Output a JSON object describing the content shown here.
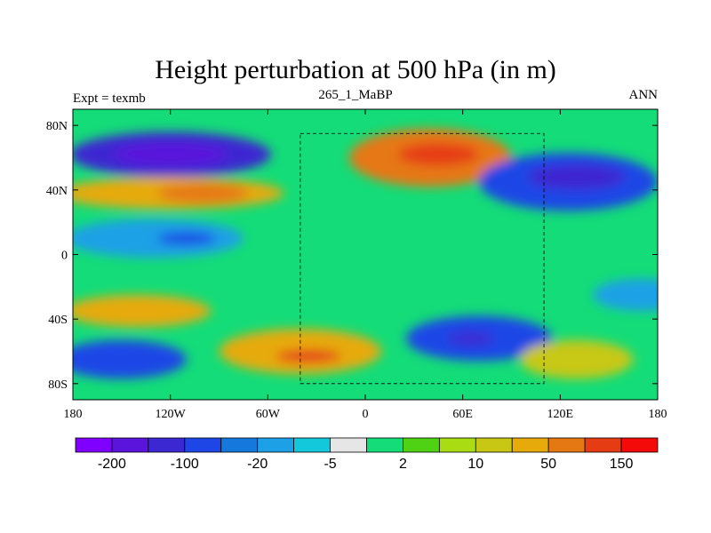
{
  "chart_data": {
    "type": "heatmap",
    "title": "Height perturbation at 500 hPa (in m)",
    "left_label": "Expt = texmb",
    "center_label": "265_1_MaBP",
    "right_label": "ANN",
    "x_ticks": [
      {
        "lon": -180,
        "label": "180"
      },
      {
        "lon": -120,
        "label": "120W"
      },
      {
        "lon": -60,
        "label": "60W"
      },
      {
        "lon": 0,
        "label": "0"
      },
      {
        "lon": 60,
        "label": "60E"
      },
      {
        "lon": 120,
        "label": "120E"
      },
      {
        "lon": 180,
        "label": "180"
      }
    ],
    "y_ticks": [
      {
        "lat": 80,
        "label": "80N"
      },
      {
        "lat": 40,
        "label": "40N"
      },
      {
        "lat": 0,
        "label": "0"
      },
      {
        "lat": -40,
        "label": "40S"
      },
      {
        "lat": -80,
        "label": "80S"
      }
    ],
    "xlim": [
      -180,
      180
    ],
    "ylim": [
      -90,
      90
    ],
    "colorbar": {
      "colors": [
        "#7f00ff",
        "#5a14dc",
        "#3c28d2",
        "#1e46e6",
        "#1478dc",
        "#1ea0e6",
        "#14c8dc",
        "#e6e6e6",
        "#14dc78",
        "#50d214",
        "#aadc14",
        "#c8c814",
        "#e6aa0a",
        "#e67814",
        "#e63c14",
        "#f50a0a"
      ],
      "labels": [
        {
          "after_index": 0,
          "label": "-200"
        },
        {
          "after_index": 2,
          "label": "-100"
        },
        {
          "after_index": 4,
          "label": "-20"
        },
        {
          "after_index": 6,
          "label": "-5"
        },
        {
          "after_index": 8,
          "label": "2"
        },
        {
          "after_index": 10,
          "label": "10"
        },
        {
          "after_index": 12,
          "label": "50"
        },
        {
          "after_index": 14,
          "label": "150"
        }
      ]
    },
    "regions": [
      {
        "name": "n-pacific-low",
        "lon": -120,
        "lat": 62,
        "rlon": 62,
        "rlat": 14,
        "level": 2
      },
      {
        "name": "n-pacific-core",
        "lon": -120,
        "lat": 62,
        "rlon": 35,
        "rlat": 7,
        "level": 1
      },
      {
        "name": "subtrop-high-pacific",
        "lon": -120,
        "lat": 38,
        "rlon": 70,
        "rlat": 10,
        "level": 12
      },
      {
        "name": "subtrop-high-core",
        "lon": -100,
        "lat": 38,
        "rlon": 28,
        "rlat": 6,
        "level": 13
      },
      {
        "name": "tropical-low",
        "lon": -130,
        "lat": 10,
        "rlon": 55,
        "rlat": 12,
        "level": 5
      },
      {
        "name": "tropical-low-core",
        "lon": -110,
        "lat": 10,
        "rlon": 18,
        "rlat": 4,
        "level": 3
      },
      {
        "name": "eurasia-high",
        "lon": 40,
        "lat": 60,
        "rlon": 50,
        "rlat": 18,
        "level": 13
      },
      {
        "name": "eurasia-core",
        "lon": 45,
        "lat": 62,
        "rlon": 25,
        "rlat": 7,
        "level": 14
      },
      {
        "name": "asia-low",
        "lon": 125,
        "lat": 45,
        "rlon": 55,
        "rlat": 18,
        "level": 3
      },
      {
        "name": "asia-low-core",
        "lon": 130,
        "lat": 48,
        "rlon": 30,
        "rlat": 8,
        "level": 2
      },
      {
        "name": "s-atl-high",
        "lon": -40,
        "lat": -60,
        "rlon": 50,
        "rlat": 14,
        "level": 12
      },
      {
        "name": "s-atl-core",
        "lon": -35,
        "lat": -63,
        "rlon": 20,
        "rlat": 4,
        "level": 14
      },
      {
        "name": "s-indian-low",
        "lon": 70,
        "lat": -52,
        "rlon": 45,
        "rlat": 14,
        "level": 3
      },
      {
        "name": "s-indian-core",
        "lon": 65,
        "lat": -52,
        "rlon": 14,
        "rlat": 4,
        "level": 2
      },
      {
        "name": "s-pacific-low",
        "lon": -150,
        "lat": -65,
        "rlon": 40,
        "rlat": 12,
        "level": 3
      },
      {
        "name": "s-ocean-high",
        "lon": 130,
        "lat": -65,
        "rlon": 35,
        "rlat": 12,
        "level": 11
      },
      {
        "name": "s-pacific-mid-high",
        "lon": -140,
        "lat": -35,
        "rlon": 45,
        "rlat": 10,
        "level": 12
      },
      {
        "name": "e-pacific-mid",
        "lon": 170,
        "lat": -25,
        "rlon": 30,
        "rlat": 10,
        "level": 5
      }
    ],
    "coast_box_lons": [
      -40,
      110
    ],
    "coast_box_lats": [
      -80,
      75
    ]
  }
}
